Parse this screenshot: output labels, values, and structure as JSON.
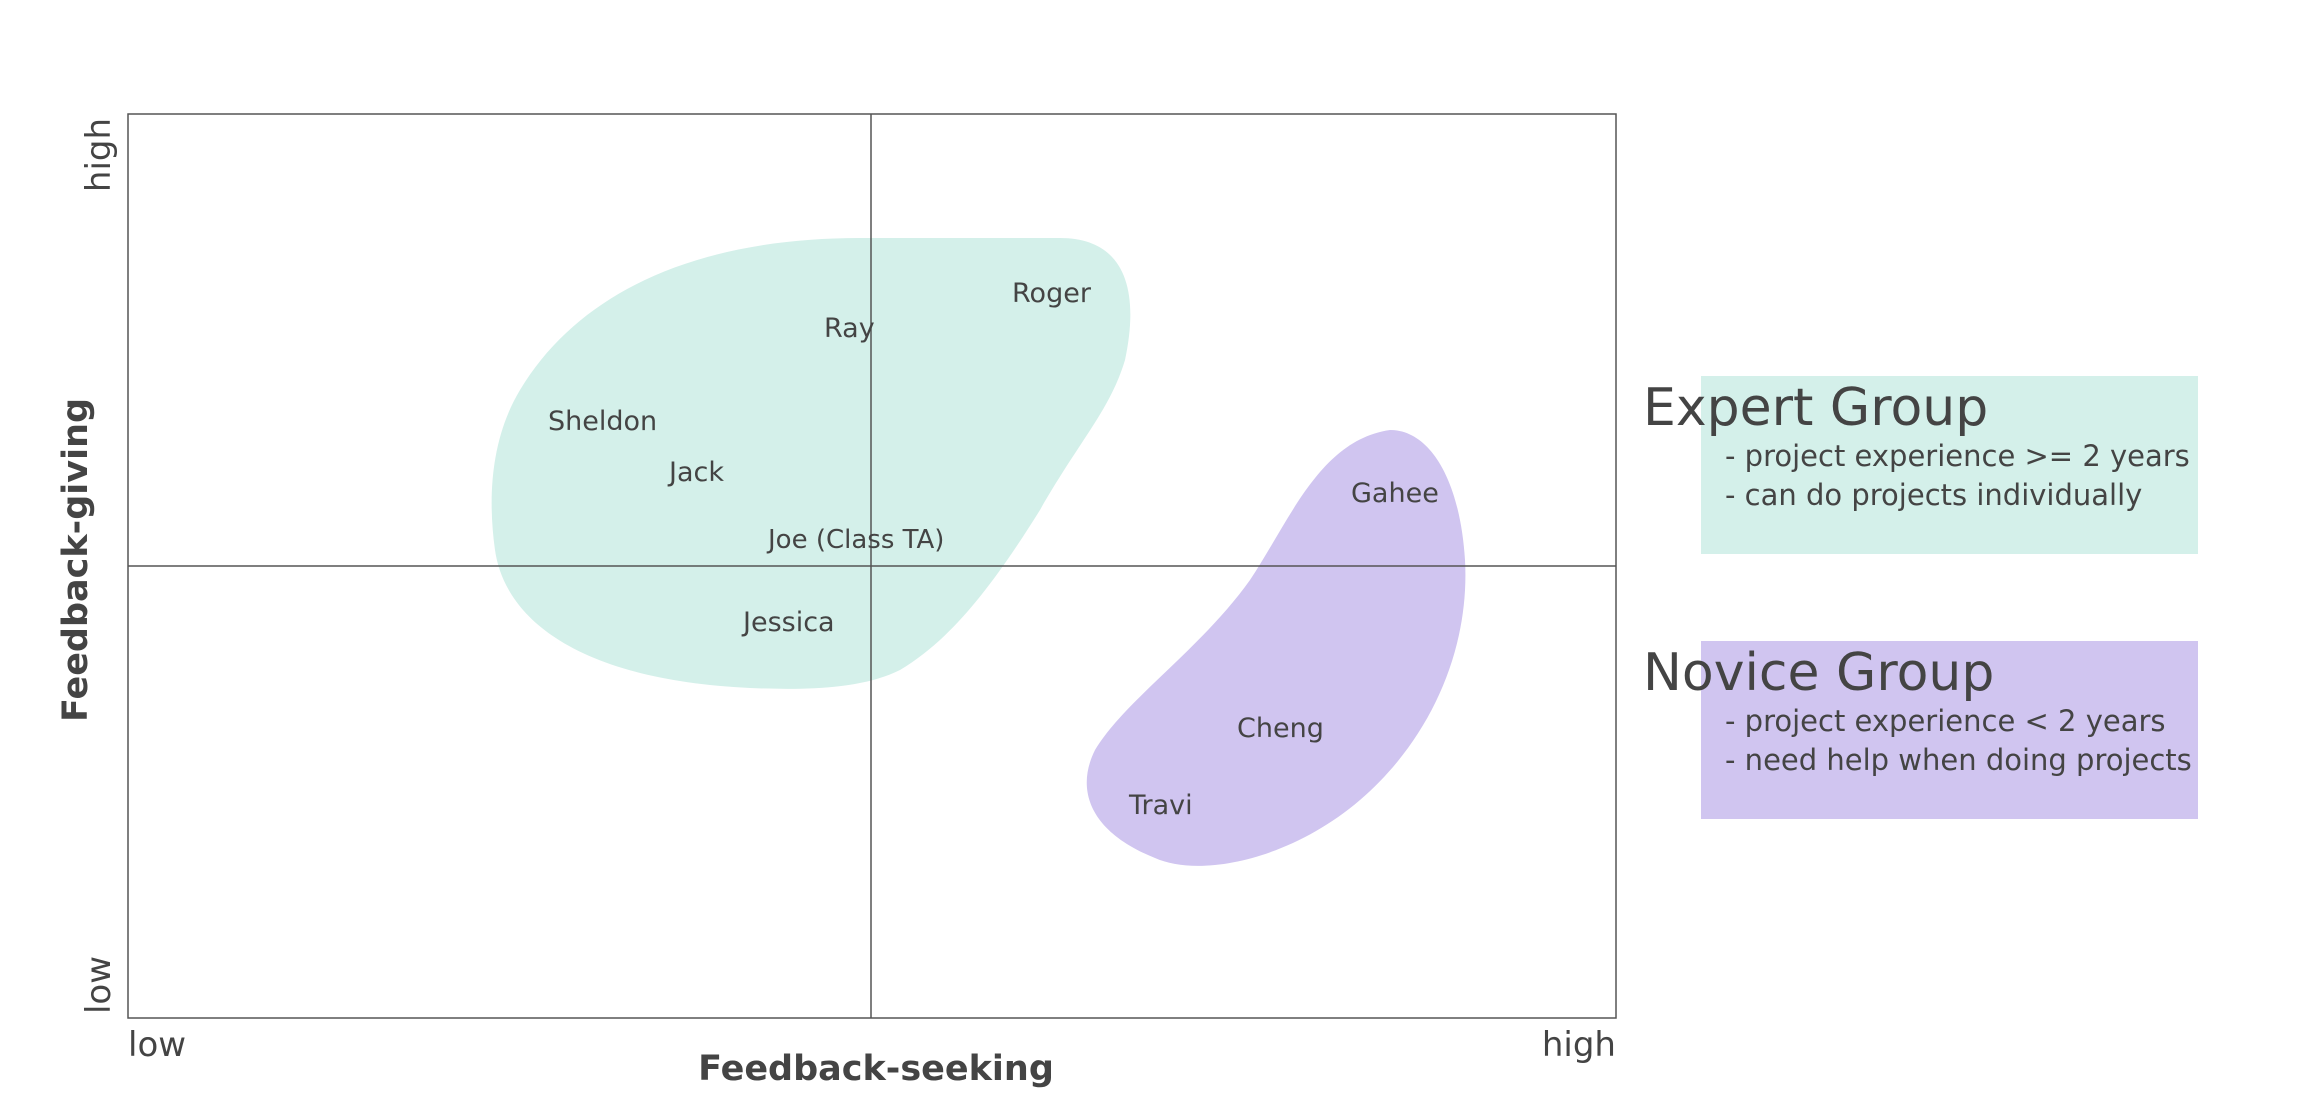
{
  "axes": {
    "x_label": "Feedback-seeking",
    "y_label": "Feedback-giving",
    "x_low": "low",
    "x_high": "high",
    "y_low": "low",
    "y_high": "high"
  },
  "people": {
    "roger": "Roger",
    "ray": "Ray",
    "sheldon": "Sheldon",
    "jack": "Jack",
    "joe": "Joe (Class TA)",
    "jessica": "Jessica",
    "gahee": "Gahee",
    "cheng": "Cheng",
    "travi": "Travi"
  },
  "legend": {
    "expert": {
      "title": "Expert Group",
      "line1": "- project experience >= 2 years",
      "line2": "- can do projects individually",
      "color": "#d4f0ea"
    },
    "novice": {
      "title": "Novice Group",
      "line1": "- project experience < 2 years",
      "line2": "- need help when doing projects",
      "color": "#d0c5f0"
    }
  },
  "colors": {
    "line": "#555555",
    "text": "#444444"
  }
}
